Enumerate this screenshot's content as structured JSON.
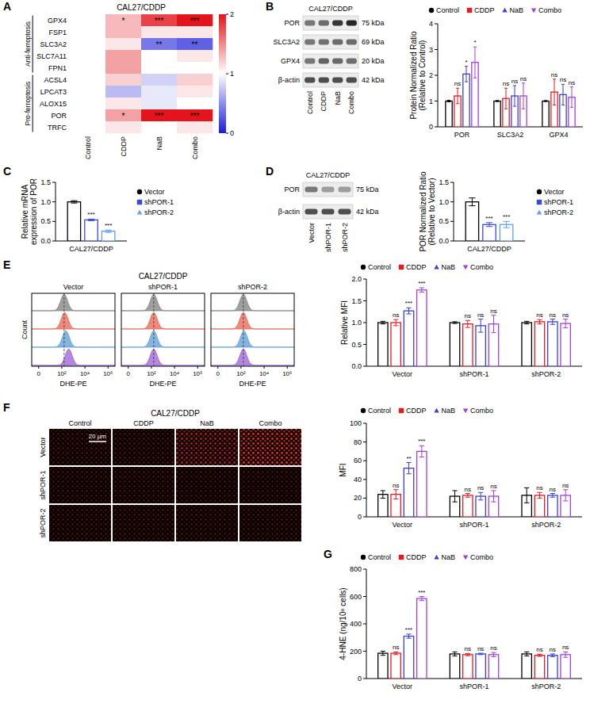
{
  "chart_data": [
    {
      "panel": "A",
      "type": "heatmap",
      "title": "CAL27/CDDP",
      "x": [
        "Control",
        "CDDP",
        "NaB",
        "Combo"
      ],
      "y": [
        "GPX4",
        "FSP1",
        "SLC3A2",
        "SLC7A11",
        "FPN1",
        "ACSL4",
        "LPCAT3",
        "ALOX15",
        "POR",
        "TRFC"
      ],
      "groups": [
        {
          "label": "Anti-ferroptosis",
          "members": [
            "GPX4",
            "FSP1",
            "SLC3A2",
            "SLC7A11",
            "FPN1"
          ]
        },
        {
          "label": "Pro-ferroptosis",
          "members": [
            "ACSL4",
            "LPCAT3",
            "ALOX15",
            "POR",
            "TRFC"
          ]
        }
      ],
      "cells": [
        [
          1,
          1.3,
          1.8,
          2.3
        ],
        [
          1,
          1.3,
          1.1,
          1.1
        ],
        [
          1,
          1.1,
          0.4,
          0.3
        ],
        [
          1,
          1.4,
          1.0,
          1.1
        ],
        [
          1,
          1.4,
          1.0,
          1.0
        ],
        [
          1,
          1.2,
          0.8,
          1.2
        ],
        [
          1,
          0.7,
          0.9,
          1.1
        ],
        [
          1,
          1.1,
          0.9,
          1.0
        ],
        [
          1,
          1.4,
          2.0,
          2.6
        ],
        [
          1,
          1.1,
          1.0,
          1.1
        ]
      ],
      "significance": [
        [
          null,
          "*",
          "***",
          "***"
        ],
        [
          null,
          null,
          null,
          null
        ],
        [
          null,
          null,
          "**",
          "**"
        ],
        [
          null,
          null,
          null,
          null
        ],
        [
          null,
          null,
          null,
          null
        ],
        [
          null,
          null,
          null,
          null
        ],
        [
          null,
          null,
          null,
          null
        ],
        [
          null,
          null,
          null,
          null
        ],
        [
          null,
          "*",
          "***",
          "***"
        ],
        [
          null,
          null,
          null,
          null
        ]
      ],
      "colorbar": {
        "range": [
          0,
          2
        ],
        "ticks": [
          0,
          1,
          2
        ],
        "colors": [
          "#1c1cd8",
          "#ffffff",
          "#e3141b"
        ]
      }
    },
    {
      "panel": "B",
      "type": "blot",
      "title": "CAL27/CDDP",
      "lanes": [
        "Control",
        "CDDP",
        "NaB",
        "Combo"
      ],
      "rows": [
        {
          "name": "POR",
          "size": "75 kDa"
        },
        {
          "name": "SLC3A2",
          "size": "69 kDa"
        },
        {
          "name": "GPX4",
          "size": "20 kDa"
        },
        {
          "name": "β-actin",
          "size": "42 kDa"
        }
      ]
    },
    {
      "panel": "B",
      "type": "bar",
      "categories": [
        "POR",
        "SLC3A2",
        "GPX4"
      ],
      "ylabel": "Protein Normalized Ratio (Relative to Control)",
      "ylim": [
        0,
        4
      ],
      "yticks": [
        0,
        1,
        2,
        3,
        4
      ],
      "legend": "top",
      "series": [
        {
          "name": "Control",
          "color": "#000000",
          "marker": "circle",
          "values": [
            1,
            1,
            1
          ],
          "errors": [
            0.03,
            0.02,
            0.02
          ],
          "significance": [
            null,
            null,
            null
          ]
        },
        {
          "name": "CDDP",
          "color": "#e8191f",
          "marker": "square",
          "values": [
            1.2,
            1.1,
            1.35
          ],
          "errors": [
            0.3,
            0.4,
            0.5
          ],
          "significance": [
            "ns",
            "ns",
            "ns"
          ]
        },
        {
          "name": "NaB",
          "color": "#3a3fd8",
          "marker": "triangle",
          "values": [
            2.05,
            1.2,
            1.25
          ],
          "errors": [
            0.3,
            0.4,
            0.4
          ],
          "significance": [
            "*",
            "ns",
            "ns"
          ]
        },
        {
          "name": "Combo",
          "color": "#a43fe0",
          "marker": "triangle-down",
          "values": [
            2.5,
            1.2,
            1.15
          ],
          "errors": [
            0.6,
            0.5,
            0.4
          ],
          "significance": [
            "*",
            "ns",
            "ns"
          ]
        }
      ]
    },
    {
      "panel": "C",
      "type": "bar",
      "categories": [
        "CAL27/CDDP"
      ],
      "ylabel": "Relative mRNA expression of POR",
      "ylim": [
        0,
        1.5
      ],
      "yticks": [
        {
          "value": 0,
          "label": "0.0"
        },
        0.5,
        {
          "value": 1,
          "label": "1.0"
        },
        1.5
      ],
      "legend": "right",
      "series": [
        {
          "name": "Vector",
          "color": "#000000",
          "marker": "circle",
          "values": [
            1.0
          ],
          "errors": [
            0.03
          ],
          "significance": [
            null
          ]
        },
        {
          "name": "shPOR-1",
          "color": "#3a4bd8",
          "marker": "square",
          "values": [
            0.54
          ],
          "errors": [
            0.02
          ],
          "significance": [
            "***"
          ]
        },
        {
          "name": "shPOR-2",
          "color": "#5fa0ee",
          "marker": "triangle",
          "values": [
            0.25
          ],
          "errors": [
            0.03
          ],
          "significance": [
            "***"
          ]
        }
      ]
    },
    {
      "panel": "D",
      "type": "blot",
      "title": "CAL27/CDDP",
      "lanes": [
        "Vector",
        "shPOR-1",
        "shPOR-2"
      ],
      "rows": [
        {
          "name": "POR",
          "size": "75 kDa"
        },
        {
          "name": "β-actin",
          "size": "42 kDa"
        }
      ]
    },
    {
      "panel": "D",
      "type": "bar",
      "categories": [
        "CAL27/CDDP"
      ],
      "ylabel": "POR Normalized Ratio (Relative to Vector)",
      "ylim": [
        0,
        1.5
      ],
      "yticks": [
        {
          "value": 0,
          "label": "0.0"
        },
        0.5,
        {
          "value": 1,
          "label": "1.0"
        },
        1.5
      ],
      "legend": "right",
      "series": [
        {
          "name": "Vector",
          "color": "#000000",
          "marker": "circle",
          "values": [
            1.0
          ],
          "errors": [
            0.1
          ],
          "significance": [
            null
          ]
        },
        {
          "name": "shPOR-1",
          "color": "#3a4bd8",
          "marker": "square",
          "values": [
            0.42
          ],
          "errors": [
            0.05
          ],
          "significance": [
            "***"
          ]
        },
        {
          "name": "shPOR-2",
          "color": "#5fa0ee",
          "marker": "triangle",
          "values": [
            0.42
          ],
          "errors": [
            0.08
          ],
          "significance": [
            "***"
          ]
        }
      ]
    },
    {
      "panel": "E",
      "type": "flow_histogram",
      "title": "CAL27/CDDP",
      "panels": [
        "Vector",
        "shPOR-1",
        "shPOR-2"
      ],
      "colors": [
        "#7f7f7f",
        "#e8614f",
        "#5b9bd5",
        "#9b5fd6"
      ],
      "peaks": [
        [
          2.2,
          2.25,
          2.35,
          2.6
        ],
        [
          2.2,
          2.2,
          2.2,
          2.2
        ],
        [
          2.2,
          2.2,
          2.25,
          2.2
        ]
      ],
      "xlabel": "DHE-PE",
      "ylabel": "Count",
      "xlim": [
        -0.6,
        6.6
      ],
      "xticks": [
        0,
        {
          "value": 2,
          "label": "10²"
        },
        {
          "value": 4,
          "label": "10⁴"
        },
        {
          "value": 6,
          "label": "10⁶"
        }
      ]
    },
    {
      "panel": "E",
      "type": "bar",
      "categories": [
        "Vector",
        "shPOR-1",
        "shPOR-2"
      ],
      "ylabel": "Relative MFI",
      "ylim": [
        0,
        2
      ],
      "yticks": [
        {
          "value": 0,
          "label": "0.0"
        },
        0.5,
        {
          "value": 1,
          "label": "1.0"
        },
        1.5,
        {
          "value": 2,
          "label": "2.0"
        }
      ],
      "legend": "top",
      "series": [
        {
          "name": "Control",
          "color": "#000000",
          "marker": "circle",
          "values": [
            1.0,
            1.0,
            1.0
          ],
          "errors": [
            0.03,
            0.02,
            0.03
          ],
          "significance": [
            null,
            null,
            null
          ]
        },
        {
          "name": "CDDP",
          "color": "#e8191f",
          "marker": "square",
          "values": [
            1.0,
            0.97,
            1.02
          ],
          "errors": [
            0.07,
            0.08,
            0.05
          ],
          "significance": [
            "ns",
            "ns",
            "ns"
          ]
        },
        {
          "name": "NaB",
          "color": "#3a3fd8",
          "marker": "triangle",
          "values": [
            1.27,
            0.93,
            1.02
          ],
          "errors": [
            0.07,
            0.15,
            0.06
          ],
          "significance": [
            "***",
            "ns",
            "ns"
          ]
        },
        {
          "name": "Combo",
          "color": "#a43fe0",
          "marker": "triangle-down",
          "values": [
            1.75,
            0.97,
            0.98
          ],
          "errors": [
            0.05,
            0.2,
            0.1
          ],
          "significance": [
            "***",
            "ns",
            "ns"
          ]
        }
      ]
    },
    {
      "panel": "F",
      "type": "image_grid",
      "title": "CAL27/CDDP",
      "columns": [
        "Control",
        "CDDP",
        "NaB",
        "Combo"
      ],
      "rows": [
        "Vector",
        "shPOR-1",
        "shPOR-2"
      ],
      "scale_bar": "20 μm"
    },
    {
      "panel": "F",
      "type": "bar",
      "categories": [
        "Vector",
        "shPOR-1",
        "shPOR-2"
      ],
      "ylabel": "MFI",
      "ylim": [
        0,
        100
      ],
      "yticks": [
        0,
        20,
        40,
        60,
        80,
        100
      ],
      "legend": "top",
      "series": [
        {
          "name": "Control",
          "color": "#000000",
          "marker": "circle",
          "values": [
            24,
            22,
            23
          ],
          "errors": [
            4,
            6,
            8
          ],
          "significance": [
            null,
            null,
            null
          ]
        },
        {
          "name": "CDDP",
          "color": "#e8191f",
          "marker": "square",
          "values": [
            24,
            23,
            23
          ],
          "errors": [
            5,
            2,
            3
          ],
          "significance": [
            "ns",
            "ns",
            "ns"
          ]
        },
        {
          "name": "NaB",
          "color": "#3a3fd8",
          "marker": "triangle",
          "values": [
            52,
            22,
            23
          ],
          "errors": [
            6,
            4,
            2
          ],
          "significance": [
            "**",
            "ns",
            "ns"
          ]
        },
        {
          "name": "Combo",
          "color": "#a43fe0",
          "marker": "triangle-down",
          "values": [
            70,
            22,
            23
          ],
          "errors": [
            6,
            6,
            6
          ],
          "significance": [
            "***",
            "ns",
            "ns"
          ]
        }
      ]
    },
    {
      "panel": "G",
      "type": "bar",
      "categories": [
        "Vector",
        "shPOR-1",
        "shPOR-2"
      ],
      "ylabel": "4-HNE (ng/10⁶ cells)",
      "ylim": [
        0,
        800
      ],
      "yticks": [
        0,
        200,
        400,
        600,
        800
      ],
      "legend": "top",
      "series": [
        {
          "name": "Control",
          "color": "#000000",
          "marker": "circle",
          "values": [
            185,
            180,
            180
          ],
          "errors": [
            15,
            15,
            15
          ],
          "significance": [
            null,
            null,
            null
          ]
        },
        {
          "name": "CDDP",
          "color": "#e8191f",
          "marker": "square",
          "values": [
            185,
            175,
            170
          ],
          "errors": [
            10,
            8,
            8
          ],
          "significance": [
            "ns",
            "ns",
            "ns"
          ]
        },
        {
          "name": "NaB",
          "color": "#3a3fd8",
          "marker": "triangle",
          "values": [
            310,
            180,
            170
          ],
          "errors": [
            15,
            5,
            10
          ],
          "significance": [
            "***",
            "ns",
            "ns"
          ]
        },
        {
          "name": "Combo",
          "color": "#a43fe0",
          "marker": "triangle-down",
          "values": [
            585,
            175,
            175
          ],
          "errors": [
            15,
            15,
            20
          ],
          "significance": [
            "***",
            "ns",
            "ns"
          ]
        }
      ]
    }
  ]
}
